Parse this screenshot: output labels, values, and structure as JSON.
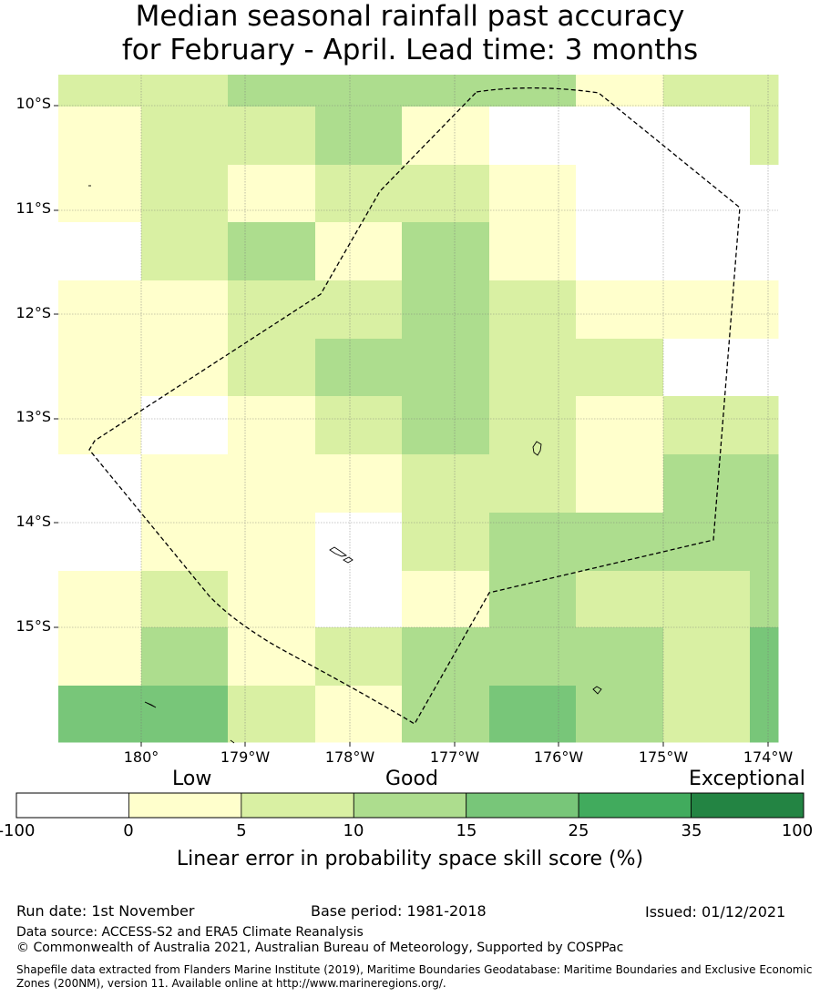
{
  "title": {
    "line1": "Median seasonal rainfall past accuracy",
    "line2": "for February - April. Lead time: 3 months"
  },
  "map": {
    "lat_labels": [
      "10°S",
      "11°S",
      "12°S",
      "13°S",
      "14°S",
      "15°S"
    ],
    "lon_labels": [
      "180°",
      "179°W",
      "178°W",
      "177°W",
      "176°W",
      "175°W",
      "174°W"
    ],
    "skill_grid": [
      [
        5,
        5,
        10,
        10,
        10,
        10,
        2,
        5,
        5
      ],
      [
        2,
        5,
        5,
        10,
        2,
        -1,
        -1,
        -1,
        5
      ],
      [
        2,
        5,
        2,
        5,
        5,
        2,
        -1,
        -1,
        -1
      ],
      [
        -1,
        5,
        10,
        2,
        10,
        2,
        -1,
        -1,
        -1
      ],
      [
        2,
        2,
        5,
        5,
        10,
        5,
        2,
        2,
        2
      ],
      [
        2,
        2,
        5,
        10,
        10,
        5,
        5,
        -1,
        -1
      ],
      [
        2,
        -1,
        2,
        5,
        10,
        5,
        2,
        5,
        5
      ],
      [
        -1,
        2,
        2,
        2,
        5,
        5,
        2,
        10,
        10
      ],
      [
        -1,
        2,
        2,
        -1,
        5,
        10,
        10,
        10,
        10
      ],
      [
        2,
        5,
        2,
        -1,
        2,
        10,
        5,
        5,
        10
      ],
      [
        2,
        10,
        2,
        5,
        10,
        10,
        10,
        5,
        15
      ],
      [
        15,
        15,
        5,
        2,
        10,
        15,
        10,
        5,
        15
      ]
    ]
  },
  "colorbar": {
    "categories": [
      "Low",
      "Good",
      "Exceptional"
    ],
    "ticks": [
      "-100",
      "0",
      "5",
      "10",
      "15",
      "25",
      "35",
      "100"
    ],
    "colors": [
      "#ffffff",
      "#ffffcc",
      "#d9f0a3",
      "#addd8e",
      "#78c679",
      "#41ab5d",
      "#238443"
    ],
    "label": "Linear error in probability space skill score (%)"
  },
  "footer": {
    "run_date": "Run date: 1st November",
    "base_period": "Base period: 1981-2018",
    "issued": "Issued: 01/12/2021",
    "data_source": "Data source: ACCESS-S2 and ERA5 Climate Reanalysis",
    "copyright": "© Commonwealth of Australia 2021, Australian Bureau of Meteorology, Supported by COSPPac",
    "shapefile": "Shapefile data extracted from Flanders Marine Institute (2019), Maritime Boundaries Geodatabase: Maritime Boundaries and Exclusive Economic Zones (200NM), version 11. Available online at http://www.marineregions.org/."
  }
}
